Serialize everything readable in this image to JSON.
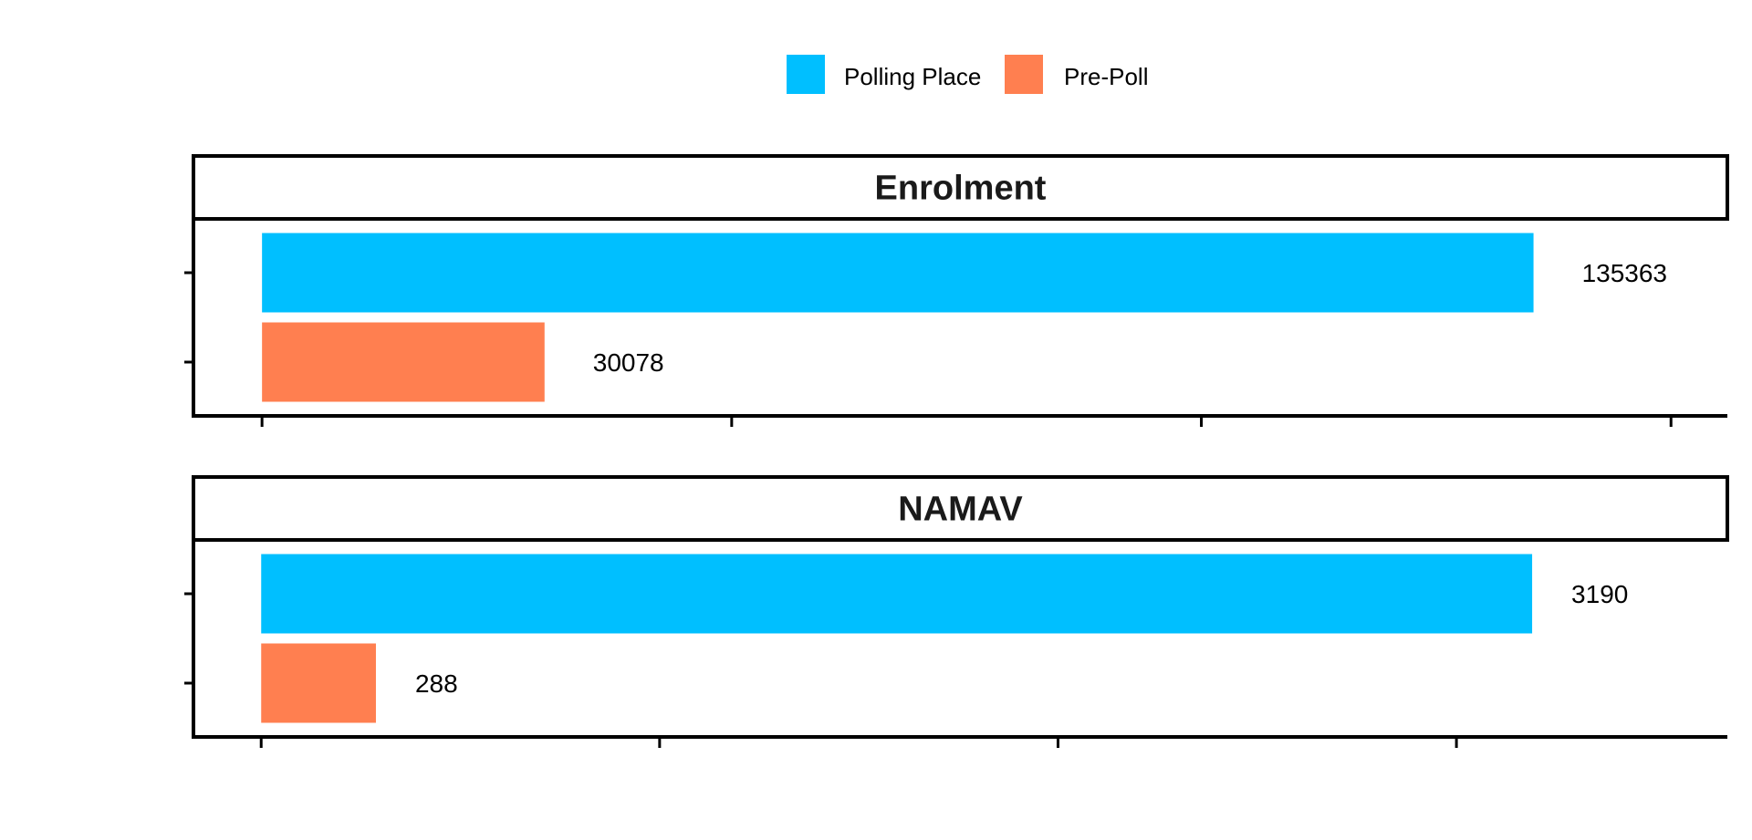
{
  "chart_data": {
    "type": "bar",
    "orientation": "horizontal",
    "layout": "facets-stacked-vertically",
    "legend": {
      "position": "top",
      "entries": [
        {
          "label": "Polling Place",
          "color": "#00BFFF"
        },
        {
          "label": "Pre-Poll",
          "color": "#FF7F50"
        }
      ]
    },
    "grid": false,
    "categories": [
      "Polling Place",
      "Pre-Poll"
    ],
    "facets": [
      {
        "title": "Enrolment",
        "values": [
          135363,
          30078
        ],
        "value_labels": [
          "135363",
          "30078"
        ],
        "xlim": [
          -7300,
          156000
        ],
        "x_ticks": [
          0,
          50000,
          100000,
          150000
        ]
      },
      {
        "title": "NAMAV",
        "values": [
          3190,
          288
        ],
        "value_labels": [
          "3190",
          "288"
        ],
        "xlim": [
          -170,
          3680
        ],
        "x_ticks": [
          0,
          1000,
          2000,
          3000
        ]
      }
    ]
  }
}
